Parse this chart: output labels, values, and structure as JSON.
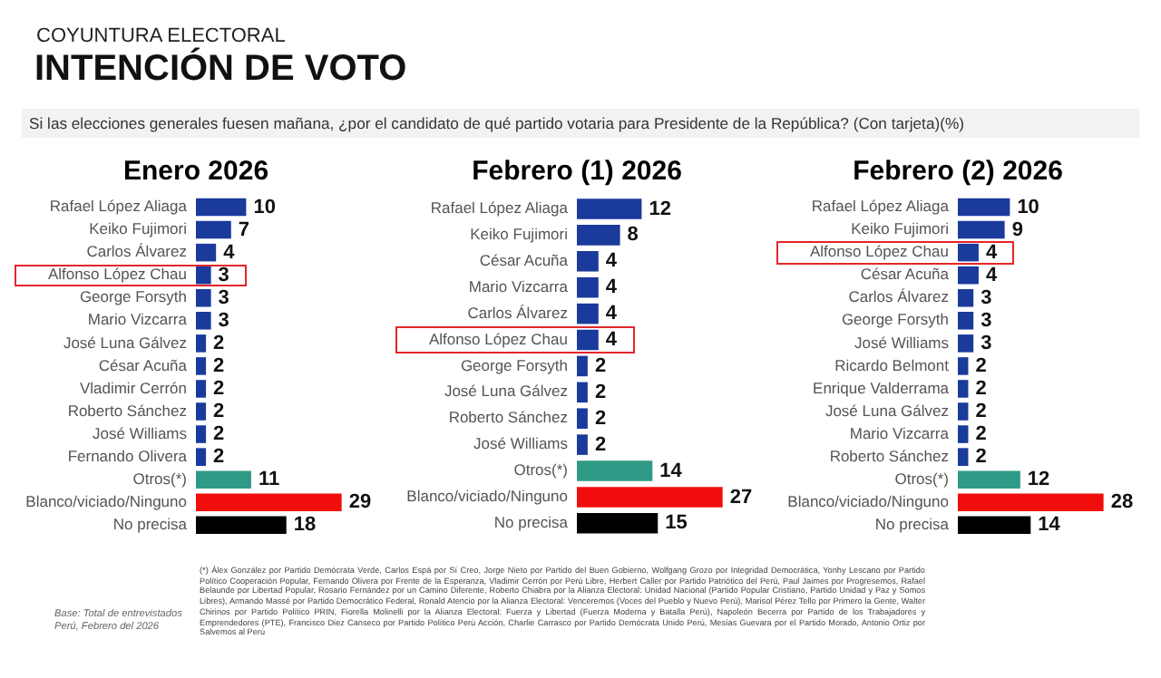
{
  "chart_data": [
    {
      "type": "bar",
      "orientation": "horizontal",
      "title": "Enero 2026",
      "categories": [
        "Rafael López Aliaga",
        "Keiko Fujimori",
        "Carlos Álvarez",
        "Alfonso López Chau",
        "George Forsyth",
        "Mario Vizcarra",
        "José Luna Gálvez",
        "César Acuña",
        "Vladimir Cerrón",
        "Roberto Sánchez",
        "José Williams",
        "Fernando Olivera",
        "Otros(*)",
        "Blanco/viciado/Ninguno",
        "No precisa"
      ],
      "values": [
        10,
        7,
        4,
        3,
        3,
        3,
        2,
        2,
        2,
        2,
        2,
        2,
        11,
        29,
        18
      ],
      "colors": [
        "#1a3a9c",
        "#1a3a9c",
        "#1a3a9c",
        "#1a3a9c",
        "#1a3a9c",
        "#1a3a9c",
        "#1a3a9c",
        "#1a3a9c",
        "#1a3a9c",
        "#1a3a9c",
        "#1a3a9c",
        "#1a3a9c",
        "#2f9a85",
        "#f20d0d",
        "#000000"
      ],
      "data_labels": true,
      "grid": false,
      "legend": false,
      "tick_labels": "y",
      "annotations": [
        "COYUNTURA ELECTORAL",
        "INTENCIÓN DE VOTO",
        "Si las elecciones generales fuesen mañana, ¿por el candidato de qué partido votaria para Presidente de la República?  (Con tarjeta)(%)",
        "Base: Total de entrevistados Perú, Febrero del 2026",
        "(*) Álex González por Partido Demócrata Verde, Carlos Espá por Sí Creo, Jorge Nieto por Partido del Buen Gobierno, Wolfgang Grozo por Integridad Democrática, Yonhy Lescano por Partido Político Cooperación Popular, Fernando Olivera por Frente de la Esperanza, Vladimir Cerrón por Perú Libre, Herbert Caller por Partido Patriótico del Perú, Paul Jaimes por Progresemos, Rafael Belaunde por Libertad Popular, Rosario Fernández por un Camino Diferente, Roberto Chiabra por la Alianza Electoral: Unidad Nacional (Partido Popular Cristiano, Partido Unidad y Paz y Somos Libres), Armando Massé por Partido Democrático Federal, Ronald Atencio por la Alianza Electoral: Venceremos (Voces del Pueblo y Nuevo Perú), Marisol Pérez Tello por Primero la Gente, Walter Chirinos por Partido Político PRIN, Fiorella Molinelli por la Alianza Electoral: Fuerza y Libertad (Fuerza Moderna y Batalla Perú), Napoleón Becerra por Partido de los Trabajadores y Emprendedores (PTE), Francisco Diez Canseco por Partido Político Perú Acción, Charlie Carrasco por Partido Demócrata Unido Perú, Mesías Guevara por el Partido Morado, Antonio Ortiz por Salvemos al Perú"
      ]
    },
    {
      "type": "bar",
      "orientation": "horizontal",
      "title": "Febrero (1) 2026",
      "categories": [
        "Rafael López Aliaga",
        "Keiko Fujimori",
        "César Acuña",
        "Mario Vizcarra",
        "Carlos Álvarez",
        "Alfonso López Chau",
        "George Forsyth",
        "José Luna Gálvez",
        "Roberto Sánchez",
        "José Williams",
        "Otros(*)",
        "Blanco/viciado/Ninguno",
        "No precisa"
      ],
      "values": [
        12,
        8,
        4,
        4,
        4,
        4,
        2,
        2,
        2,
        2,
        14,
        27,
        15
      ],
      "colors": [
        "#1a3a9c",
        "#1a3a9c",
        "#1a3a9c",
        "#1a3a9c",
        "#1a3a9c",
        "#1a3a9c",
        "#1a3a9c",
        "#1a3a9c",
        "#1a3a9c",
        "#1a3a9c",
        "#2f9a85",
        "#f20d0d",
        "#000000"
      ],
      "data_labels": true,
      "grid": false,
      "legend": false,
      "tick_labels": "y"
    },
    {
      "type": "bar",
      "orientation": "horizontal",
      "title": "Febrero (2) 2026",
      "categories": [
        "Rafael López Aliaga",
        "Keiko Fujimori",
        "Alfonso López Chau",
        "César Acuña",
        "Carlos Álvarez",
        "George Forsyth",
        "José Williams",
        "Ricardo Belmont",
        "Enrique Valderrama",
        "José Luna Gálvez",
        "Mario Vizcarra",
        "Roberto Sánchez",
        "Otros(*)",
        "Blanco/viciado/Ninguno",
        "No precisa"
      ],
      "values": [
        10,
        9,
        4,
        4,
        3,
        3,
        3,
        2,
        2,
        2,
        2,
        2,
        12,
        28,
        14
      ],
      "colors": [
        "#1a3a9c",
        "#1a3a9c",
        "#1a3a9c",
        "#1a3a9c",
        "#1a3a9c",
        "#1a3a9c",
        "#1a3a9c",
        "#1a3a9c",
        "#1a3a9c",
        "#1a3a9c",
        "#1a3a9c",
        "#1a3a9c",
        "#2f9a85",
        "#f20d0d",
        "#000000"
      ],
      "data_labels": true,
      "grid": false,
      "legend": false,
      "tick_labels": "y"
    }
  ]
}
